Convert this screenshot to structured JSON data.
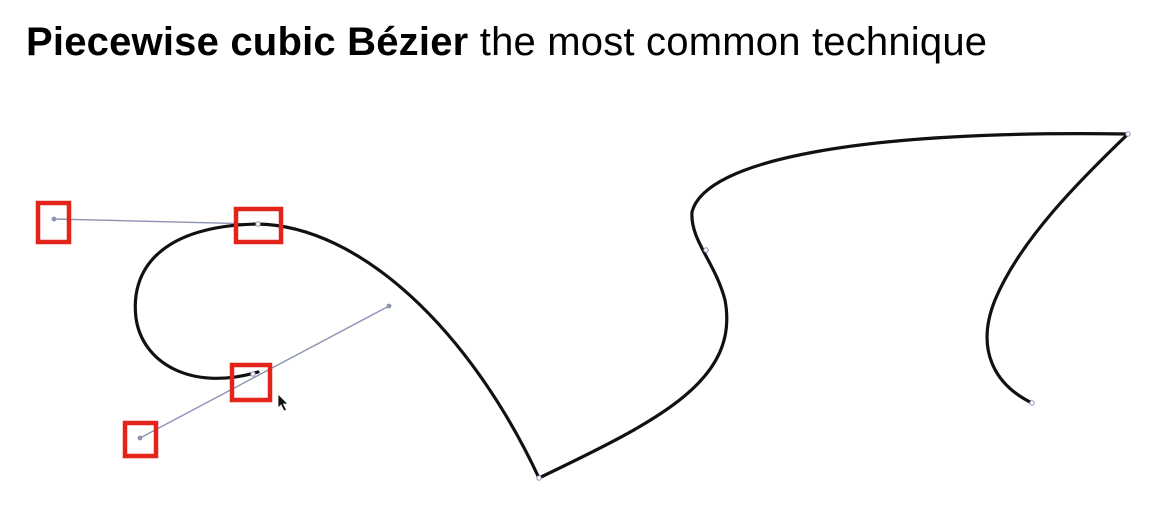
{
  "title": {
    "bold": "Piecewise cubic Bézier",
    "light": "the most common technique"
  },
  "colors": {
    "curve": "#111111",
    "handle": "#8d93b3",
    "highlight": "#e3241b"
  },
  "icons": {
    "cursor": "cursor-arrow-icon"
  }
}
